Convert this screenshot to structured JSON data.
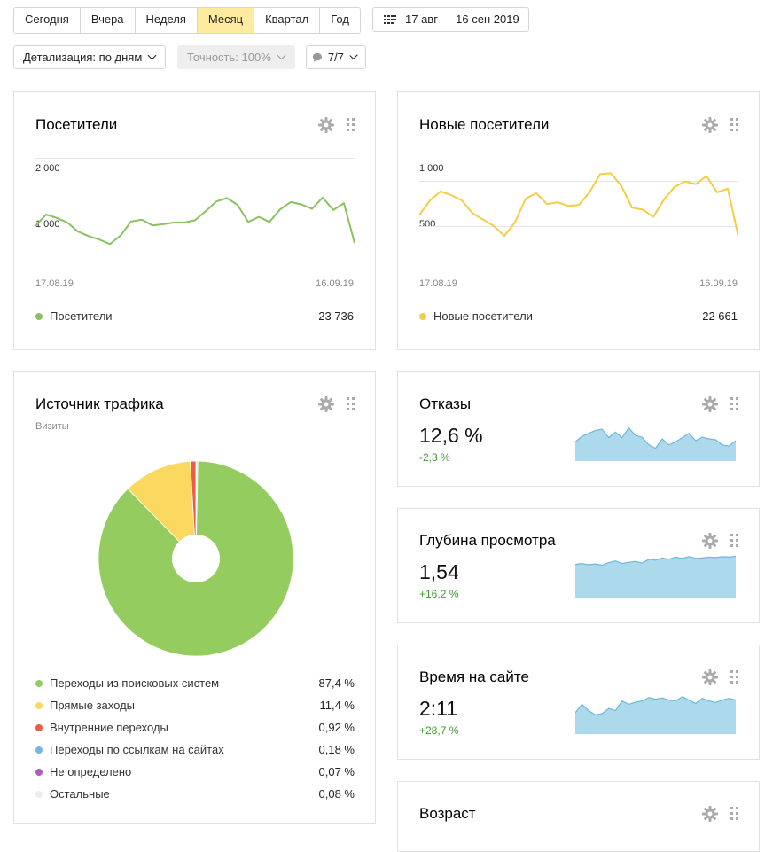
{
  "periods": [
    {
      "label": "Сегодня",
      "active": false
    },
    {
      "label": "Вчера",
      "active": false
    },
    {
      "label": "Неделя",
      "active": false
    },
    {
      "label": "Месяц",
      "active": true
    },
    {
      "label": "Квартал",
      "active": false
    },
    {
      "label": "Год",
      "active": false
    }
  ],
  "date_range": "17 авг — 16 сен 2019",
  "detail_dropdown": "Детализация: по дням",
  "accuracy_dropdown": "Точность: 100%",
  "comments_dropdown": "7/7",
  "visitors": {
    "title": "Посетители",
    "y_ticks": [
      "2 000",
      "1 000"
    ],
    "date_start": "17.08.19",
    "date_end": "16.09.19",
    "legend": "Посетители",
    "total": "23 736",
    "color": "#8cc063"
  },
  "new_visitors": {
    "title": "Новые посетители",
    "y_ticks": [
      "1 000",
      "500"
    ],
    "date_start": "17.08.19",
    "date_end": "16.09.19",
    "legend": "Новые посетители",
    "total": "22 661",
    "color": "#f2cd46"
  },
  "traffic": {
    "title": "Источник трафика",
    "subtitle": "Визиты",
    "sources": [
      {
        "label": "Переходы из поисковых систем",
        "pct": "87,4 %",
        "value": 87.4,
        "color": "#94cc5f"
      },
      {
        "label": "Прямые заходы",
        "pct": "11,4 %",
        "value": 11.4,
        "color": "#fbd960"
      },
      {
        "label": "Внутренние переходы",
        "pct": "0,92 %",
        "value": 0.92,
        "color": "#ea5d47"
      },
      {
        "label": "Переходы по ссылкам на сайтах",
        "pct": "0,18 %",
        "value": 0.18,
        "color": "#7ab4e0"
      },
      {
        "label": "Не определено",
        "pct": "0,07 %",
        "value": 0.07,
        "color": "#b25bb8"
      },
      {
        "label": "Остальные",
        "pct": "0,08 %",
        "value": 0.08,
        "color": "#eeeeee"
      }
    ]
  },
  "bounce": {
    "title": "Отказы",
    "value": "12,6 %",
    "delta": "-2,3 %"
  },
  "depth": {
    "title": "Глубина просмотра",
    "value": "1,54",
    "delta": "+16,2 %"
  },
  "time": {
    "title": "Время на сайте",
    "value": "2:11",
    "delta": "+28,7 %"
  },
  "age": {
    "title": "Возраст"
  },
  "chart_data": [
    {
      "type": "line",
      "title": "Посетители",
      "x": [
        "17.08.19",
        "18.08.19",
        "19.08.19",
        "20.08.19",
        "21.08.19",
        "22.08.19",
        "23.08.19",
        "24.08.19",
        "25.08.19",
        "26.08.19",
        "27.08.19",
        "28.08.19",
        "29.08.19",
        "30.08.19",
        "31.08.19",
        "01.09.19",
        "02.09.19",
        "03.09.19",
        "04.09.19",
        "05.09.19",
        "06.09.19",
        "07.09.19",
        "08.09.19",
        "09.09.19",
        "10.09.19",
        "11.09.19",
        "12.09.19",
        "13.09.19",
        "14.09.19",
        "15.09.19",
        "16.09.19"
      ],
      "series": [
        {
          "name": "Посетители",
          "values": [
            800,
            1000,
            940,
            860,
            700,
            620,
            560,
            480,
            630,
            880,
            910,
            810,
            830,
            860,
            860,
            900,
            1060,
            1230,
            1290,
            1170,
            870,
            960,
            870,
            1090,
            1220,
            1180,
            1100,
            1300,
            1080,
            1200,
            500
          ]
        }
      ],
      "ylim": [
        0,
        2000
      ]
    },
    {
      "type": "line",
      "title": "Новые посетители",
      "x": [
        "17.08.19",
        "18.08.19",
        "19.08.19",
        "20.08.19",
        "21.08.19",
        "22.08.19",
        "23.08.19",
        "24.08.19",
        "25.08.19",
        "26.08.19",
        "27.08.19",
        "28.08.19",
        "29.08.19",
        "30.08.19",
        "31.08.19",
        "01.09.19",
        "02.09.19",
        "03.09.19",
        "04.09.19",
        "05.09.19",
        "06.09.19",
        "07.09.19",
        "08.09.19",
        "09.09.19",
        "10.09.19",
        "11.09.19",
        "12.09.19",
        "13.09.19",
        "14.09.19",
        "15.09.19",
        "16.09.19"
      ],
      "series": [
        {
          "name": "Новые посетители",
          "values": [
            620,
            780,
            880,
            840,
            780,
            640,
            570,
            500,
            390,
            540,
            800,
            860,
            740,
            760,
            720,
            730,
            870,
            1070,
            1080,
            940,
            700,
            680,
            600,
            790,
            930,
            990,
            960,
            1050,
            870,
            910,
            380
          ]
        }
      ],
      "ylim": [
        0,
        1250
      ]
    },
    {
      "type": "pie",
      "title": "Источник трафика",
      "categories": [
        "Переходы из поисковых систем",
        "Прямые заходы",
        "Внутренние переходы",
        "Переходы по ссылкам на сайтах",
        "Не определено",
        "Остальные"
      ],
      "values": [
        87.4,
        11.4,
        0.92,
        0.18,
        0.07,
        0.08
      ]
    },
    {
      "type": "area",
      "title": "Отказы",
      "values": [
        0.45,
        0.58,
        0.65,
        0.72,
        0.75,
        0.55,
        0.68,
        0.55,
        0.78,
        0.6,
        0.56,
        0.38,
        0.3,
        0.52,
        0.38,
        0.45,
        0.55,
        0.65,
        0.48,
        0.56,
        0.52,
        0.5,
        0.38,
        0.35,
        0.48
      ]
    },
    {
      "type": "area",
      "title": "Глубина просмотра",
      "values": [
        0.78,
        0.8,
        0.77,
        0.79,
        0.76,
        0.82,
        0.86,
        0.8,
        0.83,
        0.85,
        0.81,
        0.9,
        0.88,
        0.93,
        0.9,
        0.95,
        0.92,
        0.96,
        0.92,
        0.93,
        0.95,
        0.94,
        0.96,
        0.95,
        0.97
      ]
    },
    {
      "type": "area",
      "title": "Время на сайте",
      "values": [
        0.5,
        0.7,
        0.55,
        0.45,
        0.48,
        0.6,
        0.55,
        0.78,
        0.7,
        0.75,
        0.78,
        0.86,
        0.82,
        0.85,
        0.8,
        0.78,
        0.88,
        0.8,
        0.72,
        0.84,
        0.78,
        0.74,
        0.8,
        0.84,
        0.8
      ]
    }
  ]
}
